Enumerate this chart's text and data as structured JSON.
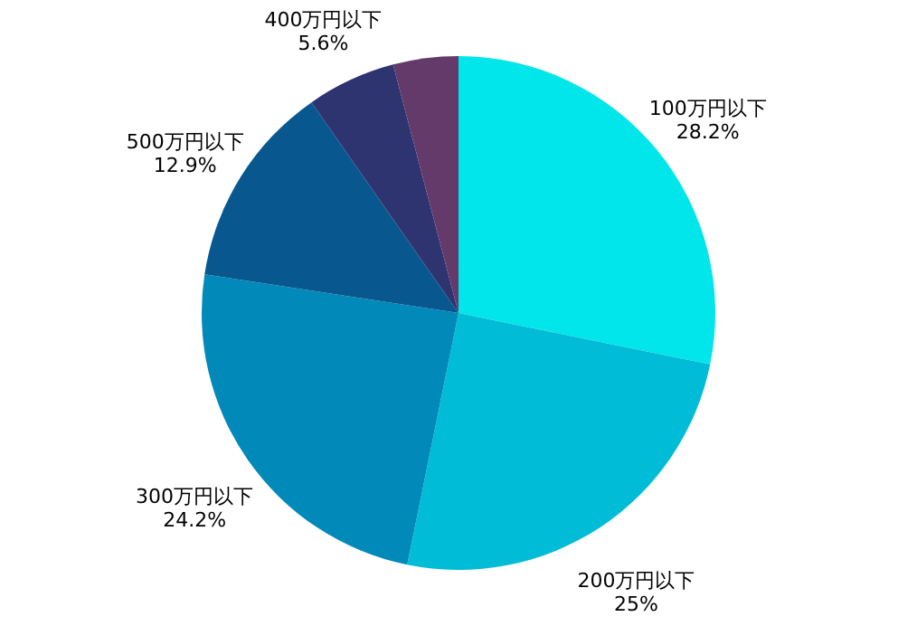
{
  "chart_data": {
    "type": "pie",
    "categories": [
      "100万円以下",
      "200万円以下",
      "300万円以下",
      "500万円以下",
      "400万円以下",
      null
    ],
    "values": [
      28.2,
      25,
      24.2,
      12.9,
      5.6,
      4.1
    ],
    "value_labels": [
      "28.2%",
      "25%",
      "24.2%",
      "12.9%",
      "5.6%",
      null
    ],
    "colors": [
      "#00e6ea",
      "#00bcd6",
      "#0089b9",
      "#08588f",
      "#2e3470",
      "#633a6a"
    ]
  }
}
